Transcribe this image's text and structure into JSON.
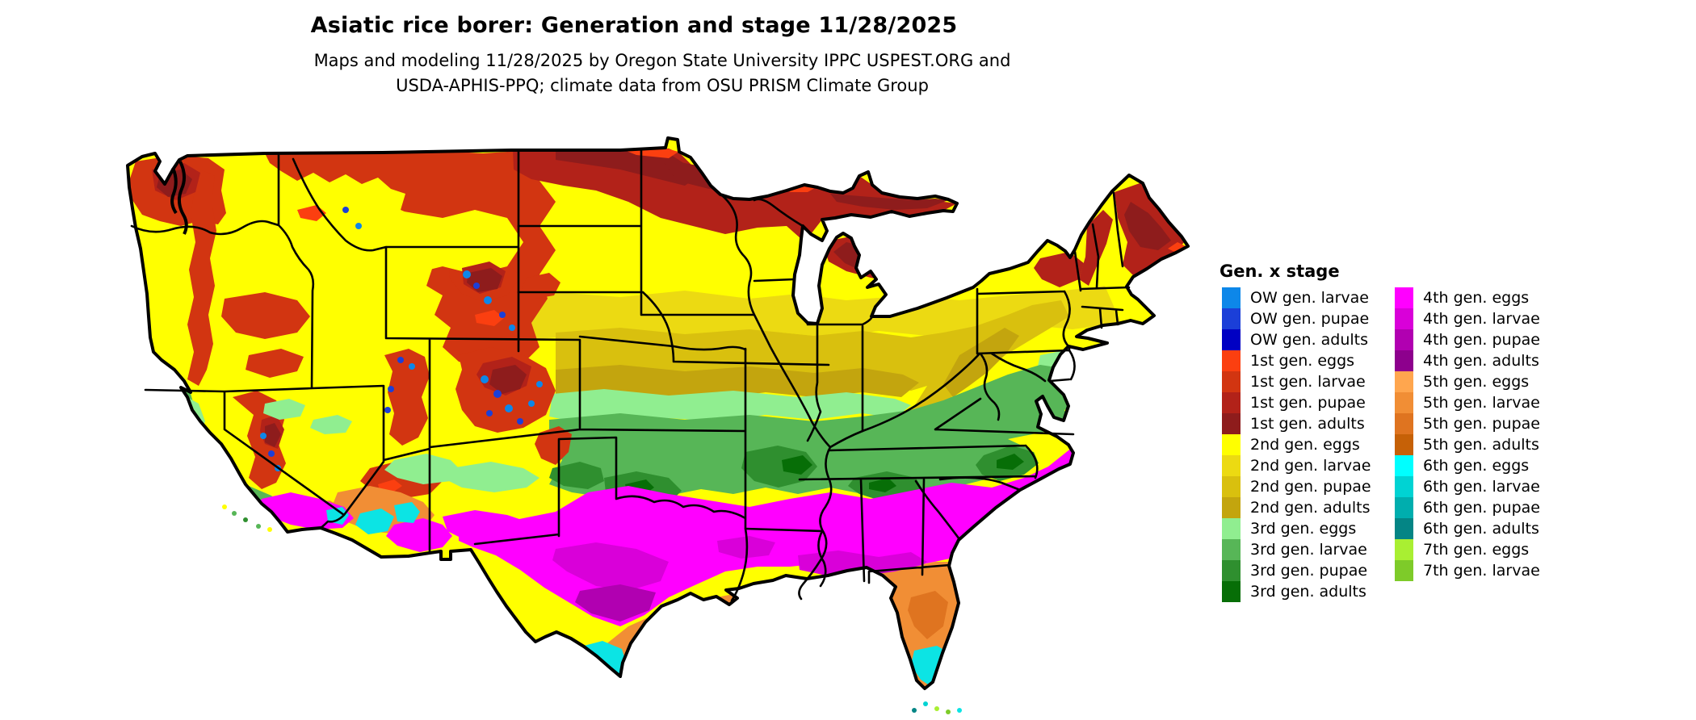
{
  "header": {
    "title": "Asiatic rice borer: Generation and stage 11/28/2025",
    "subtitle_line1": "Maps and modeling 11/28/2025 by Oregon State University IPPC USPEST.ORG and",
    "subtitle_line2": "USDA-APHIS-PPQ; climate data from OSU PRISM Climate Group"
  },
  "map": {
    "region": "contiguous United States choropleth raster",
    "land_base_color": "#ffff00",
    "state_border_color": "#000000",
    "background_color": "#ffffff"
  },
  "legend": {
    "title": "Gen. x stage",
    "columns": [
      [
        {
          "label": "OW gen. larvae",
          "color": "#0d87e9"
        },
        {
          "label": "OW gen. pupae",
          "color": "#1b3fd8"
        },
        {
          "label": "OW gen. adults",
          "color": "#0000c3"
        },
        {
          "label": "1st gen. eggs",
          "color": "#fb3f10"
        },
        {
          "label": "1st gen. larvae",
          "color": "#d23511"
        },
        {
          "label": "1st gen. pupae",
          "color": "#b22219"
        },
        {
          "label": "1st gen. adults",
          "color": "#8e1c1c"
        },
        {
          "label": "2nd gen. eggs",
          "color": "#ffff00"
        },
        {
          "label": "2nd gen. larvae",
          "color": "#ecda12"
        },
        {
          "label": "2nd gen. pupae",
          "color": "#d9c00e"
        },
        {
          "label": "2nd gen. adults",
          "color": "#c3a50e"
        },
        {
          "label": "3rd gen. eggs",
          "color": "#90ee90"
        },
        {
          "label": "3rd gen. larvae",
          "color": "#57b657"
        },
        {
          "label": "3rd gen. pupae",
          "color": "#2f8f2f"
        },
        {
          "label": "3rd gen. adults",
          "color": "#076e07"
        }
      ],
      [
        {
          "label": "4th gen. eggs",
          "color": "#ff00ff"
        },
        {
          "label": "4th gen. larvae",
          "color": "#d900d9"
        },
        {
          "label": "4th gen. pupae",
          "color": "#b100b1"
        },
        {
          "label": "4th gen. adults",
          "color": "#8d008d"
        },
        {
          "label": "5th gen. eggs",
          "color": "#ffa64e"
        },
        {
          "label": "5th gen. larvae",
          "color": "#f18e35"
        },
        {
          "label": "5th gen. pupae",
          "color": "#df7420"
        },
        {
          "label": "5th gen. adults",
          "color": "#c66107"
        },
        {
          "label": "6th gen. eggs",
          "color": "#00ffff"
        },
        {
          "label": "6th gen. larvae",
          "color": "#00d3d3"
        },
        {
          "label": "6th gen. pupae",
          "color": "#00aeae"
        },
        {
          "label": "6th gen. adults",
          "color": "#048585"
        },
        {
          "label": "7th gen. eggs",
          "color": "#a9ef32"
        },
        {
          "label": "7th gen. larvae",
          "color": "#7ecb29"
        }
      ]
    ]
  }
}
